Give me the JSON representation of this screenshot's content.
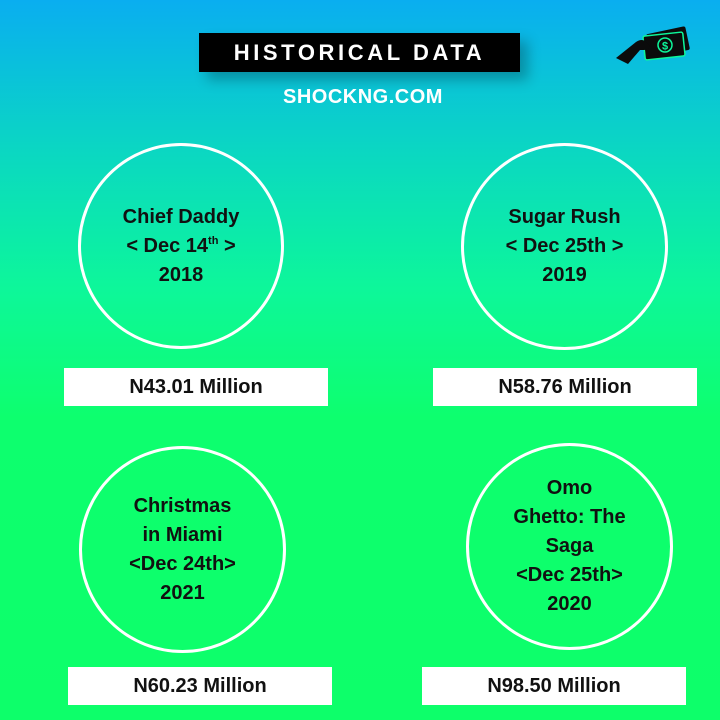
{
  "header": {
    "title": "HISTORICAL DATA",
    "site": "SHOCKNG.COM",
    "icon": "money-hand-icon"
  },
  "colors": {
    "gradient_top": "#0aaef0",
    "gradient_bottom": "#0dff6a",
    "title_box": "#000000",
    "text": "#111111",
    "circle_border": "#ffffff"
  },
  "movies": [
    {
      "name": "Chief Daddy",
      "date_prefix": "< Dec 14",
      "date_ordinal": "th",
      "date_suffix": " >",
      "year": "2018",
      "amount": "N43.01 Million"
    },
    {
      "name": "Sugar Rush",
      "date": "< Dec 25th >",
      "year": "2019",
      "amount": "N58.76 Million"
    },
    {
      "name_line1": "Christmas",
      "name_line2": "in Miami",
      "date": "<Dec 24th>",
      "year": "2021",
      "amount": "N60.23 Million"
    },
    {
      "name_line1": "Omo",
      "name_line2": "Ghetto: The",
      "name_line3": "Saga",
      "date": "<Dec 25th>",
      "year": "2020",
      "amount": "N98.50 Million"
    }
  ]
}
